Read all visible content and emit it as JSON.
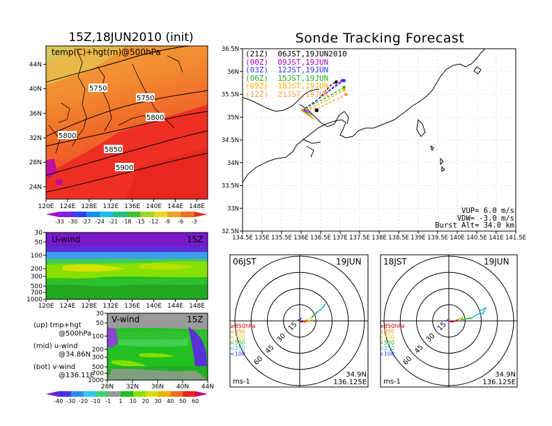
{
  "init_panel": {
    "title": "15Z,18JUN2010 (init)",
    "label": "temp(C)+hgt(m)@500hPa",
    "lon_ticks": [
      "120E",
      "124E",
      "128E",
      "132E",
      "136E",
      "140E",
      "144E",
      "148E"
    ],
    "lat_ticks": [
      "44N",
      "40N",
      "36N",
      "32N",
      "28N",
      "24N"
    ],
    "contour_labels": [
      "5750",
      "5750",
      "5800",
      "5800",
      "5850",
      "5900"
    ],
    "colorbar_labels": [
      "-33",
      "-30",
      "-27",
      "-24",
      "-21",
      "-18",
      "-15",
      "-12",
      "-9",
      "-6",
      "-3"
    ]
  },
  "uwind_panel": {
    "label": "U-wind",
    "time": "15Z",
    "p_ticks": [
      "30",
      "50",
      "100",
      "200",
      "300",
      "500",
      "700",
      "1000"
    ],
    "lon_ticks": [
      "120E",
      "124E",
      "128E",
      "132E",
      "136E",
      "140E",
      "144E",
      "148E"
    ]
  },
  "vwind_panel": {
    "label": "V-wind",
    "time": "15Z",
    "p_ticks": [
      "30",
      "50",
      "100",
      "200",
      "300",
      "500",
      "700",
      "1000"
    ],
    "lat_ticks": [
      "28N",
      "32N",
      "36N",
      "40N",
      "44N"
    ]
  },
  "notes": {
    "up_1": "(up) tmp+hgt",
    "up_2": "@500hPa",
    "mid_1": "(mid) u-wind",
    "mid_2": "@34.86N",
    "bot_1": "(bot) v-wind",
    "bot_2": "@136.11E"
  },
  "wind_colorbar_labels": [
    "-40",
    "-30",
    "-20",
    "-10",
    "-1",
    "1",
    "10",
    "20",
    "30",
    "40",
    "50",
    "60"
  ],
  "tracking": {
    "title": "Sonde Tracking Forecast",
    "runs": [
      {
        "label": "(21Z)  06JST,19JUN2010",
        "color": "#000000"
      },
      {
        "label": "(00Z)  09JST,19JUN",
        "color": "#b000c0"
      },
      {
        "label": "(03Z)  12JST,19JUN",
        "color": "#2a3cff"
      },
      {
        "label": "(06Z)  15JST,19JUN",
        "color": "#22b022"
      },
      {
        "label": "(09Z)  18JST,19JUN",
        "color": "#ffb000"
      },
      {
        "label": "(12Z)  21JST,19JUN",
        "color": "#ff9d45"
      }
    ],
    "lon_ticks": [
      "134.5E",
      "135E",
      "135.5E",
      "136E",
      "136.5E",
      "137E",
      "137.5E",
      "138E",
      "138.5E",
      "139E",
      "139.5E",
      "140E",
      "140.5E",
      "141E",
      "141.5E"
    ],
    "lat_ticks": [
      "36.5N",
      "36N",
      "35.5N",
      "35N",
      "34.5N",
      "34N",
      "33.5N",
      "33N",
      "32.5N"
    ],
    "params": [
      "VUP=  6.0  m/s",
      "VDW= -3.0  m/s",
      "Burst Alt= 34.0  km"
    ]
  },
  "hodo_left": {
    "time": "06JST",
    "date": "19JUN",
    "ring_labels": [
      "15",
      "30",
      "45",
      "60"
    ],
    "level_legend": [
      "≥850hPa",
      "<850",
      "<700",
      "<500",
      "<250",
      "<100"
    ],
    "level_colors": [
      "#d00000",
      "#ff8c00",
      "#e8d000",
      "#22b022",
      "#20b8d8",
      "#2040ff"
    ],
    "units": "ms-1",
    "loc_1": "34.9N",
    "loc_2": "136.125E"
  },
  "hodo_right": {
    "time": "18JST",
    "date": "19JUN",
    "ring_labels": [
      "15",
      "30",
      "45",
      "60"
    ],
    "level_legend": [
      "≥850hPa",
      "<850",
      "<700",
      "<500",
      "<250",
      "<100"
    ],
    "level_colors": [
      "#d00000",
      "#ff8c00",
      "#e8d000",
      "#22b022",
      "#20b8d8",
      "#2040ff"
    ],
    "units": "ms-1",
    "loc_1": "34.9N",
    "loc_2": "136.125E"
  },
  "chart_data": [
    {
      "type": "heatmap",
      "title": "15Z,18JUN2010 (init)",
      "label": "temp(C)+hgt(m)@500hPa",
      "x_ticks": [
        "120E",
        "124E",
        "128E",
        "132E",
        "136E",
        "140E",
        "144E",
        "148E"
      ],
      "y_ticks": [
        "44N",
        "40N",
        "36N",
        "32N",
        "28N",
        "24N"
      ],
      "xlim": [
        120,
        150
      ],
      "ylim": [
        22,
        47
      ],
      "colorbar": [
        "-33",
        "-30",
        "-27",
        "-24",
        "-21",
        "-18",
        "-15",
        "-12",
        "-9",
        "-6",
        "-3"
      ],
      "contours": [
        5750,
        5800,
        5850,
        5900
      ]
    },
    {
      "type": "heatmap",
      "label": "U-wind",
      "time": "15Z",
      "x_ticks": [
        "120E",
        "124E",
        "128E",
        "132E",
        "136E",
        "140E",
        "144E",
        "148E"
      ],
      "y_ticks": [
        "30",
        "50",
        "100",
        "200",
        "300",
        "500",
        "700",
        "1000"
      ],
      "ylog": true,
      "colorbar": [
        "-40",
        "-30",
        "-20",
        "-10",
        "-1",
        "1",
        "10",
        "20",
        "30",
        "40",
        "50",
        "60"
      ]
    },
    {
      "type": "heatmap",
      "label": "V-wind",
      "time": "15Z",
      "x_ticks": [
        "28N",
        "32N",
        "36N",
        "40N",
        "44N"
      ],
      "y_ticks": [
        "30",
        "50",
        "100",
        "200",
        "300",
        "500",
        "700",
        "1000"
      ],
      "ylog": true
    },
    {
      "type": "line",
      "title": "Sonde Tracking Forecast",
      "xlim": [
        134.5,
        141.5
      ],
      "ylim": [
        32.5,
        36.5
      ],
      "launch": {
        "lon": 136.0,
        "lat": 35.15
      },
      "series": [
        {
          "name": "(21Z)  06JST,19JUN2010",
          "color": "#000000",
          "x": [
            136.0,
            136.2,
            136.45,
            136.6,
            136.78,
            136.9
          ],
          "y": [
            35.15,
            35.25,
            35.4,
            35.55,
            35.72,
            35.77
          ]
        },
        {
          "name": "(00Z)  09JST,19JUN",
          "color": "#b000c0",
          "x": [
            136.0,
            136.3,
            136.6,
            136.85,
            137.05
          ],
          "y": [
            35.15,
            35.3,
            35.5,
            35.68,
            35.8
          ]
        },
        {
          "name": "(03Z)  12JST,19JUN",
          "color": "#2a3cff",
          "x": [
            136.0,
            136.3,
            136.6,
            136.9,
            137.1
          ],
          "y": [
            35.15,
            35.3,
            35.5,
            35.68,
            35.8
          ]
        },
        {
          "name": "(06Z)  15JST,19JUN",
          "color": "#22b022",
          "x": [
            136.0,
            136.35,
            136.7,
            136.95,
            137.1
          ],
          "y": [
            35.15,
            35.3,
            35.45,
            35.58,
            35.65
          ]
        },
        {
          "name": "(09Z)  18JST,19JUN",
          "color": "#ffb000",
          "x": [
            136.0,
            136.4,
            136.75,
            137.0,
            137.1
          ],
          "y": [
            35.15,
            35.25,
            35.42,
            35.55,
            35.6
          ]
        },
        {
          "name": "(12Z)  21JST,19JUN",
          "color": "#ff9d45",
          "x": [
            136.0,
            136.45,
            136.8,
            137.05,
            137.15
          ],
          "y": [
            35.15,
            35.2,
            35.35,
            35.45,
            35.5
          ]
        }
      ]
    },
    {
      "type": "line",
      "label": "06JST 19JUN",
      "units": "ms-1",
      "rings": [
        15,
        30,
        45,
        60
      ],
      "series": [
        {
          "name": "≥850hPa",
          "color": "#d00000",
          "u": [
            0,
            2,
            5,
            5,
            4
          ],
          "v": [
            0,
            -1,
            0,
            -1,
            0
          ]
        },
        {
          "name": "<850",
          "color": "#ff8c00",
          "u": [
            4,
            7,
            9
          ],
          "v": [
            0,
            1,
            -1
          ]
        },
        {
          "name": "<700",
          "color": "#e8d000",
          "u": [
            9,
            10,
            11
          ],
          "v": [
            -1,
            1,
            3
          ]
        },
        {
          "name": "<500",
          "color": "#22b022",
          "u": [
            11,
            14,
            16
          ],
          "v": [
            3,
            6,
            8
          ]
        },
        {
          "name": "<250",
          "color": "#20b8d8",
          "u": [
            16,
            20,
            24,
            21
          ],
          "v": [
            8,
            11,
            16,
            12
          ]
        },
        {
          "name": "<100",
          "color": "#2040ff",
          "u": [
            0,
            -1,
            1,
            0
          ],
          "v": [
            0,
            1,
            2,
            0
          ]
        }
      ]
    },
    {
      "type": "line",
      "label": "18JST 19JUN",
      "units": "ms-1",
      "rings": [
        15,
        30,
        45,
        60
      ],
      "series": [
        {
          "name": "≥850hPa",
          "color": "#d00000",
          "u": [
            0,
            3,
            6,
            8
          ],
          "v": [
            0,
            -1,
            0,
            1
          ]
        },
        {
          "name": "<850",
          "color": "#ff8c00",
          "u": [
            8,
            10
          ],
          "v": [
            1,
            2
          ]
        },
        {
          "name": "<700",
          "color": "#e8d000",
          "u": [
            10,
            12,
            11
          ],
          "v": [
            2,
            3,
            1
          ]
        },
        {
          "name": "<500",
          "color": "#22b022",
          "u": [
            11,
            16,
            22
          ],
          "v": [
            1,
            2,
            3
          ]
        },
        {
          "name": "<250",
          "color": "#20b8d8",
          "u": [
            22,
            26,
            32,
            34,
            28
          ],
          "v": [
            3,
            6,
            7,
            12,
            9
          ]
        },
        {
          "name": "<100",
          "color": "#2040ff",
          "u": [
            0,
            -2,
            -1,
            0
          ],
          "v": [
            0,
            0,
            1,
            0
          ]
        }
      ]
    }
  ]
}
